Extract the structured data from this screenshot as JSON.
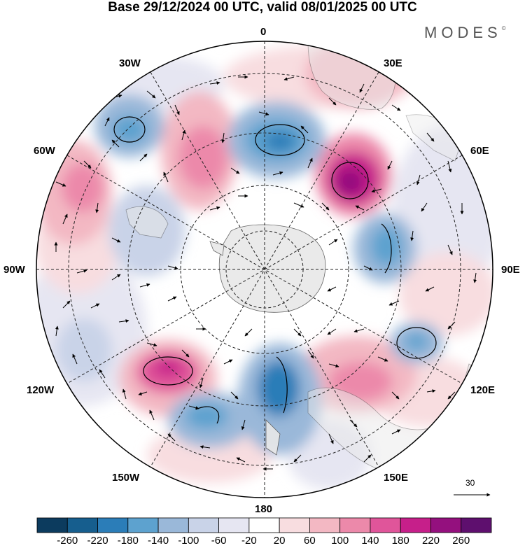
{
  "title": "Base 29/12/2024 00 UTC, valid 08/01/2025 00 UTC",
  "brand": "MODES",
  "brand_mark": "©",
  "lon_labels": {
    "n0": "0",
    "n30w": "30W",
    "n30e": "30E",
    "n60w": "60W",
    "n60e": "60E",
    "n90w": "90W",
    "n90e": "90E",
    "n120w": "120W",
    "n120e": "120E",
    "n150w": "150W",
    "n150e": "150E",
    "n180": "180"
  },
  "reference_vector": {
    "label": "30",
    "icon": "right-arrow-icon"
  },
  "colorbar": {
    "ticks": [
      "-260",
      "-220",
      "-180",
      "-140",
      "-100",
      "-60",
      "-20",
      "20",
      "60",
      "100",
      "140",
      "180",
      "220",
      "260"
    ],
    "colors": [
      "#0c3b5e",
      "#165e8e",
      "#2b7db8",
      "#5da2cf",
      "#9ab8d9",
      "#c9d3e8",
      "#e6e6f2",
      "#ffffff",
      "#f8dde0",
      "#f3b8c3",
      "#ec89aa",
      "#e0559a",
      "#c61f8a",
      "#94107e",
      "#5e0f6e"
    ]
  },
  "map": {
    "projection": "south polar stereographic",
    "land_color": "#e8e8e8",
    "meridians": [
      "0",
      "30E",
      "60E",
      "90E",
      "120E",
      "150E",
      "180",
      "150W",
      "120W",
      "90W",
      "60W",
      "30W"
    ]
  }
}
